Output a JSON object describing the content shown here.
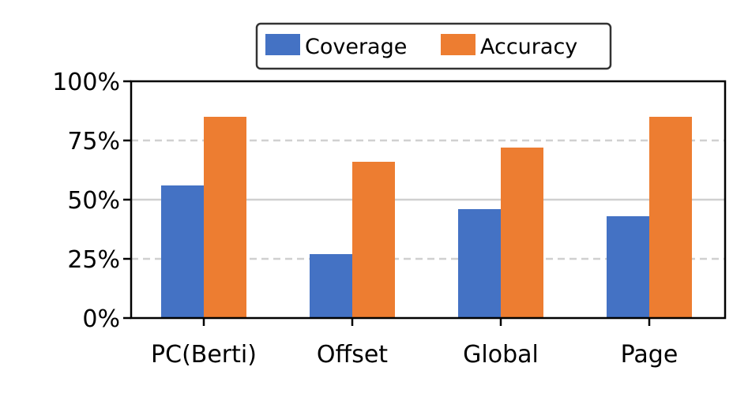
{
  "chart_data": {
    "type": "bar",
    "categories": [
      "PC(Berti)",
      "Offset",
      "Global",
      "Page"
    ],
    "series": [
      {
        "name": "Coverage",
        "values": [
          56,
          27,
          46,
          43
        ],
        "color": "#4472c4"
      },
      {
        "name": "Accuracy",
        "values": [
          85,
          66,
          72,
          85
        ],
        "color": "#ed7d31"
      }
    ],
    "y_unit": "%",
    "ylim": [
      0,
      100
    ],
    "yticks": [
      "0%",
      "25%",
      "50%",
      "75%",
      "100%"
    ],
    "ytick_values": [
      0,
      25,
      50,
      75,
      100
    ],
    "legend_placement": "top-center",
    "grid": "horizontal"
  }
}
